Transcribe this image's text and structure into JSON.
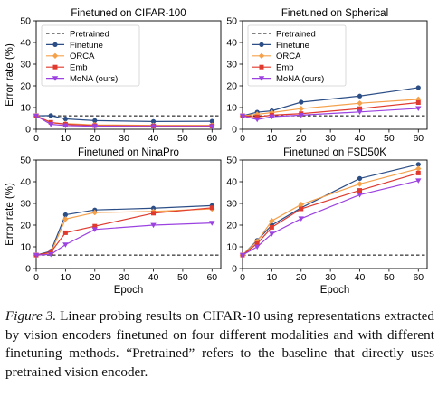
{
  "figure": {
    "panels": [
      {
        "title": "Finetuned on CIFAR-100",
        "show_legend": true
      },
      {
        "title": "Finetuned on Spherical",
        "show_legend": true
      },
      {
        "title": "Finetuned on NinaPro",
        "show_legend": false
      },
      {
        "title": "Finetuned on FSD50K",
        "show_legend": false
      }
    ],
    "legend": {
      "pretrained": "Pretrained",
      "finetune": "Finetune",
      "orca": "ORCA",
      "emb": "Emb",
      "mona": "MoNA (ours)"
    }
  },
  "caption": {
    "lead": "Figure 3.",
    "text": "Linear probing results on CIFAR-10 using representations extracted by vision encoders finetuned on four different modalities and with different finetuning methods. “Pretrained” refers to the baseline that directly uses pretrained vision encoder."
  },
  "chart_data": [
    {
      "type": "line",
      "title": "Finetuned on CIFAR-100",
      "xlabel": "",
      "ylabel": "Error rate (%)",
      "x": [
        0,
        5,
        10,
        20,
        40,
        60
      ],
      "xticks": [
        0,
        10,
        20,
        30,
        40,
        50,
        60
      ],
      "yticks": [
        0,
        10,
        20,
        30,
        40,
        50
      ],
      "xlim": [
        0,
        63
      ],
      "ylim": [
        0,
        50
      ],
      "baseline": {
        "name": "Pretrained",
        "value": 6.2
      },
      "series": [
        {
          "name": "Finetune",
          "color": "#2c4e86",
          "marker": "circle",
          "values": [
            6.2,
            6.3,
            4.8,
            4.0,
            3.6,
            3.7
          ]
        },
        {
          "name": "ORCA",
          "color": "#f5a04a",
          "marker": "diamond",
          "values": [
            6.2,
            2.9,
            2.6,
            2.0,
            1.8,
            1.8
          ]
        },
        {
          "name": "Emb",
          "color": "#e03a2f",
          "marker": "square",
          "values": [
            6.2,
            3.2,
            2.3,
            1.7,
            1.5,
            1.5
          ]
        },
        {
          "name": "MoNA (ours)",
          "color": "#9b42e0",
          "marker": "triangle-down",
          "values": [
            6.2,
            2.3,
            1.7,
            1.4,
            1.3,
            1.3
          ]
        }
      ],
      "legend_position": "upper-left"
    },
    {
      "type": "line",
      "title": "Finetuned on Spherical",
      "xlabel": "",
      "ylabel": "",
      "x": [
        0,
        5,
        10,
        20,
        40,
        60
      ],
      "xticks": [
        0,
        10,
        20,
        30,
        40,
        50,
        60
      ],
      "yticks": [
        0,
        10,
        20,
        30,
        40,
        50
      ],
      "xlim": [
        0,
        63
      ],
      "ylim": [
        0,
        50
      ],
      "baseline": {
        "name": "Pretrained",
        "value": 6.2
      },
      "series": [
        {
          "name": "Finetune",
          "color": "#2c4e86",
          "marker": "circle",
          "values": [
            6.2,
            7.9,
            8.5,
            12.5,
            15.3,
            19.2
          ]
        },
        {
          "name": "ORCA",
          "color": "#f5a04a",
          "marker": "diamond",
          "values": [
            6.2,
            6.9,
            7.7,
            9.5,
            12.0,
            13.8
          ]
        },
        {
          "name": "Emb",
          "color": "#e03a2f",
          "marker": "square",
          "values": [
            6.2,
            5.7,
            6.5,
            7.2,
            9.5,
            12.3
          ]
        },
        {
          "name": "MoNA (ours)",
          "color": "#9b42e0",
          "marker": "triangle-down",
          "values": [
            6.2,
            4.5,
            5.8,
            6.5,
            8.0,
            9.6
          ]
        }
      ],
      "legend_position": "upper-left"
    },
    {
      "type": "line",
      "title": "Finetuned on NinaPro",
      "xlabel": "Epoch",
      "ylabel": "Error rate (%)",
      "x": [
        0,
        5,
        10,
        20,
        40,
        60
      ],
      "xticks": [
        0,
        10,
        20,
        30,
        40,
        50,
        60
      ],
      "yticks": [
        0,
        10,
        20,
        30,
        40,
        50
      ],
      "xlim": [
        0,
        63
      ],
      "ylim": [
        0,
        50
      ],
      "baseline": {
        "name": "Pretrained",
        "value": 6.2
      },
      "series": [
        {
          "name": "Finetune",
          "color": "#2c4e86",
          "marker": "circle",
          "values": [
            6.2,
            8.0,
            24.8,
            27.0,
            27.8,
            29.0
          ]
        },
        {
          "name": "ORCA",
          "color": "#f5a04a",
          "marker": "diamond",
          "values": [
            6.2,
            7.2,
            22.8,
            25.8,
            26.3,
            27.5
          ]
        },
        {
          "name": "Emb",
          "color": "#e03a2f",
          "marker": "square",
          "values": [
            6.2,
            7.5,
            16.5,
            19.5,
            25.5,
            28.0
          ]
        },
        {
          "name": "MoNA (ours)",
          "color": "#9b42e0",
          "marker": "triangle-down",
          "values": [
            6.2,
            6.5,
            11.0,
            18.0,
            20.0,
            21.0
          ]
        }
      ],
      "legend_position": "none"
    },
    {
      "type": "line",
      "title": "Finetuned on FSD50K",
      "xlabel": "Epoch",
      "ylabel": "",
      "x": [
        0,
        5,
        10,
        20,
        40,
        60
      ],
      "xticks": [
        0,
        10,
        20,
        30,
        40,
        50,
        60
      ],
      "yticks": [
        0,
        10,
        20,
        30,
        40,
        50
      ],
      "xlim": [
        0,
        63
      ],
      "ylim": [
        0,
        50
      ],
      "baseline": {
        "name": "Pretrained",
        "value": 6.2
      },
      "series": [
        {
          "name": "Finetune",
          "color": "#2c4e86",
          "marker": "circle",
          "values": [
            6.2,
            13.0,
            20.0,
            28.0,
            41.5,
            48.0
          ]
        },
        {
          "name": "ORCA",
          "color": "#f5a04a",
          "marker": "diamond",
          "values": [
            6.2,
            12.5,
            22.0,
            29.5,
            39.0,
            46.0
          ]
        },
        {
          "name": "Emb",
          "color": "#e03a2f",
          "marker": "square",
          "values": [
            6.2,
            11.5,
            19.0,
            27.5,
            36.0,
            44.0
          ]
        },
        {
          "name": "MoNA (ours)",
          "color": "#9b42e0",
          "marker": "triangle-down",
          "values": [
            6.2,
            10.0,
            16.0,
            23.0,
            34.0,
            40.5
          ]
        }
      ],
      "legend_position": "none"
    }
  ]
}
